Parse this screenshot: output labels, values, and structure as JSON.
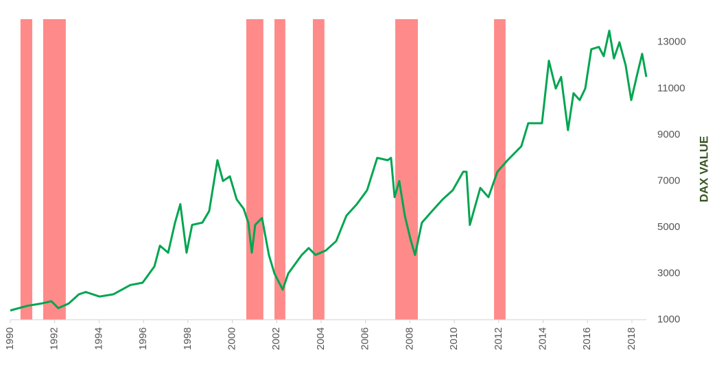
{
  "chart_data": {
    "type": "line",
    "y_axis_label": "DAX VALUE",
    "x": [
      1990.0,
      1990.77,
      1991.39,
      1991.85,
      1992.16,
      1992.63,
      1993.09,
      1993.4,
      1994.02,
      1994.64,
      1995.41,
      1995.96,
      1996.49,
      1996.74,
      1997.11,
      1997.42,
      1997.66,
      1997.94,
      1998.19,
      1998.65,
      1998.96,
      1999.33,
      1999.58,
      1999.89,
      2000.2,
      2000.51,
      2000.72,
      2000.88,
      2001.03,
      2001.34,
      2001.65,
      2001.9,
      2002.27,
      2002.52,
      2003.13,
      2003.44,
      2003.75,
      2004.22,
      2004.68,
      2005.14,
      2005.61,
      2006.07,
      2006.53,
      2007.0,
      2007.15,
      2007.31,
      2007.52,
      2007.77,
      2008.02,
      2008.23,
      2008.54,
      2009.0,
      2009.47,
      2009.93,
      2010.4,
      2010.55,
      2010.7,
      2011.17,
      2011.54,
      2011.94,
      2012.4,
      2013.02,
      2013.33,
      2013.95,
      2014.26,
      2014.57,
      2014.81,
      2015.12,
      2015.37,
      2015.65,
      2015.9,
      2016.17,
      2016.51,
      2016.73,
      2016.98,
      2017.19,
      2017.44,
      2017.72,
      2017.97,
      2018.21,
      2018.46,
      2018.65
    ],
    "series": [
      {
        "name": "DAX",
        "color": "#00a550",
        "values": [
          1400,
          1600,
          1700,
          1800,
          1500,
          1700,
          2100,
          2200,
          2000,
          2100,
          2500,
          2600,
          3300,
          4200,
          3900,
          5200,
          6000,
          3900,
          5100,
          5200,
          5700,
          7900,
          7000,
          7200,
          6200,
          5800,
          5200,
          3900,
          5100,
          5400,
          3800,
          3000,
          2300,
          3000,
          3800,
          4100,
          3800,
          4000,
          4400,
          5500,
          6000,
          6600,
          8000,
          7900,
          8000,
          6300,
          7000,
          5500,
          4500,
          3800,
          5200,
          5700,
          6200,
          6600,
          7400,
          7400,
          5100,
          6700,
          6300,
          7400,
          7900,
          8500,
          9500,
          9500,
          12200,
          11000,
          11500,
          9200,
          10800,
          10500,
          11000,
          12700,
          12800,
          12400,
          13500,
          12300,
          13000,
          12000,
          10500,
          11500,
          12500,
          11500
        ]
      }
    ],
    "bands": [
      [
        1990.46,
        1990.99
      ],
      [
        1991.48,
        1992.5
      ],
      [
        2000.63,
        2001.4
      ],
      [
        2001.9,
        2002.39
      ],
      [
        2003.63,
        2004.15
      ],
      [
        2007.34,
        2008.36
      ],
      [
        2011.79,
        2012.31
      ]
    ],
    "band_color": "#ff8a8a",
    "xlim": [
      1990,
      2018.65
    ],
    "xticks": [
      1990,
      1992,
      1994,
      1996,
      1998,
      2000,
      2002,
      2004,
      2006,
      2008,
      2010,
      2012,
      2014,
      2016,
      2018
    ],
    "ylim": [
      1000,
      14000
    ],
    "yticks": [
      1000,
      3000,
      5000,
      7000,
      9000,
      11000,
      13000
    ]
  }
}
